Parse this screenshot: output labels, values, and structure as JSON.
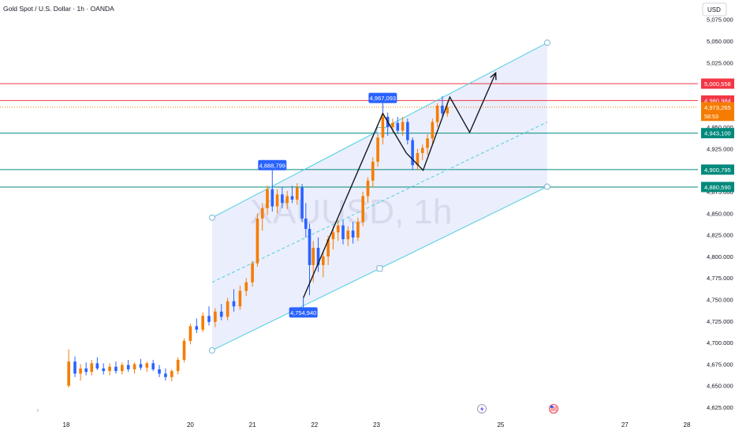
{
  "header": {
    "symbol_title": "Gold Spot / U.S. Dollar · 1h · OANDA",
    "currency": "USD",
    "watermark": "XAUUSD, 1h"
  },
  "colors": {
    "up": "#f57c00",
    "down": "#2962ff",
    "channel_line": "#4dd0e1",
    "channel_fill": "#e8ebfb",
    "red_line": "#f23645",
    "teal_line": "#00897b",
    "callout": "#2962ff",
    "axis_text": "#131722",
    "current_price_bg": "#f57c00",
    "level_badge_bg": "#00897b",
    "red_badge_bg": "#f23645"
  },
  "chart_data": {
    "type": "candlestick",
    "instrument": "XAUUSD",
    "timeframe": "1h",
    "ylim": [
      4625,
      5075
    ],
    "y_ticks": [
      "4,625.000",
      "4,650.000",
      "4,675.000",
      "4,700.000",
      "4,725.000",
      "4,750.000",
      "4,775.000",
      "4,800.000",
      "4,825.000",
      "4,850.000",
      "4,875.000",
      "4,900.000",
      "4,925.000",
      "4,950.000",
      "4,975.000",
      "5,000.000",
      "5,025.000",
      "5,050.000",
      "5,075.000"
    ],
    "x_ticks": [
      {
        "label": "18",
        "day": 18
      },
      {
        "label": "20",
        "day": 20
      },
      {
        "label": "21",
        "day": 21
      },
      {
        "label": "22",
        "day": 22
      },
      {
        "label": "23",
        "day": 23
      },
      {
        "label": "25",
        "day": 25
      },
      {
        "label": "27",
        "day": 27
      },
      {
        "label": "28",
        "day": 28
      }
    ],
    "x_day_range": [
      17.3,
      28.2
    ],
    "candles": [
      {
        "day": 18.04,
        "o": 4650,
        "h": 4692,
        "l": 4648,
        "c": 4678
      },
      {
        "day": 18.14,
        "o": 4678,
        "h": 4684,
        "l": 4660,
        "c": 4664
      },
      {
        "day": 18.23,
        "o": 4664,
        "h": 4675,
        "l": 4656,
        "c": 4670
      },
      {
        "day": 18.32,
        "o": 4670,
        "h": 4677,
        "l": 4662,
        "c": 4666
      },
      {
        "day": 18.41,
        "o": 4666,
        "h": 4680,
        "l": 4662,
        "c": 4676
      },
      {
        "day": 18.5,
        "o": 4676,
        "h": 4683,
        "l": 4668,
        "c": 4670
      },
      {
        "day": 18.6,
        "o": 4670,
        "h": 4676,
        "l": 4663,
        "c": 4667
      },
      {
        "day": 18.7,
        "o": 4667,
        "h": 4676,
        "l": 4662,
        "c": 4672
      },
      {
        "day": 18.8,
        "o": 4672,
        "h": 4678,
        "l": 4664,
        "c": 4667
      },
      {
        "day": 18.9,
        "o": 4667,
        "h": 4677,
        "l": 4663,
        "c": 4674
      },
      {
        "day": 19.0,
        "o": 4674,
        "h": 4680,
        "l": 4666,
        "c": 4669
      },
      {
        "day": 19.1,
        "o": 4669,
        "h": 4677,
        "l": 4664,
        "c": 4675
      },
      {
        "day": 19.2,
        "o": 4675,
        "h": 4681,
        "l": 4668,
        "c": 4671
      },
      {
        "day": 19.3,
        "o": 4671,
        "h": 4678,
        "l": 4666,
        "c": 4676
      },
      {
        "day": 19.4,
        "o": 4676,
        "h": 4680,
        "l": 4667,
        "c": 4669
      },
      {
        "day": 19.5,
        "o": 4669,
        "h": 4674,
        "l": 4660,
        "c": 4664
      },
      {
        "day": 19.6,
        "o": 4664,
        "h": 4670,
        "l": 4656,
        "c": 4660
      },
      {
        "day": 19.7,
        "o": 4660,
        "h": 4669,
        "l": 4655,
        "c": 4667
      },
      {
        "day": 19.8,
        "o": 4667,
        "h": 4683,
        "l": 4663,
        "c": 4680
      },
      {
        "day": 19.9,
        "o": 4680,
        "h": 4705,
        "l": 4677,
        "c": 4702
      },
      {
        "day": 20.0,
        "o": 4702,
        "h": 4722,
        "l": 4698,
        "c": 4719
      },
      {
        "day": 20.1,
        "o": 4719,
        "h": 4728,
        "l": 4711,
        "c": 4715
      },
      {
        "day": 20.2,
        "o": 4715,
        "h": 4735,
        "l": 4712,
        "c": 4731
      },
      {
        "day": 20.3,
        "o": 4731,
        "h": 4742,
        "l": 4720,
        "c": 4724
      },
      {
        "day": 20.4,
        "o": 4724,
        "h": 4740,
        "l": 4718,
        "c": 4736
      },
      {
        "day": 20.5,
        "o": 4736,
        "h": 4745,
        "l": 4726,
        "c": 4730
      },
      {
        "day": 20.6,
        "o": 4730,
        "h": 4752,
        "l": 4726,
        "c": 4748
      },
      {
        "day": 20.7,
        "o": 4748,
        "h": 4762,
        "l": 4736,
        "c": 4742
      },
      {
        "day": 20.8,
        "o": 4742,
        "h": 4766,
        "l": 4738,
        "c": 4760
      },
      {
        "day": 20.9,
        "o": 4760,
        "h": 4775,
        "l": 4754,
        "c": 4770
      },
      {
        "day": 21.0,
        "o": 4770,
        "h": 4795,
        "l": 4765,
        "c": 4792
      },
      {
        "day": 21.08,
        "o": 4792,
        "h": 4850,
        "l": 4788,
        "c": 4844
      },
      {
        "day": 21.16,
        "o": 4844,
        "h": 4862,
        "l": 4830,
        "c": 4856
      },
      {
        "day": 21.24,
        "o": 4856,
        "h": 4882,
        "l": 4848,
        "c": 4878
      },
      {
        "day": 21.32,
        "o": 4878,
        "h": 4889,
        "l": 4852,
        "c": 4858
      },
      {
        "day": 21.4,
        "o": 4858,
        "h": 4878,
        "l": 4850,
        "c": 4872
      },
      {
        "day": 21.48,
        "o": 4872,
        "h": 4880,
        "l": 4856,
        "c": 4862
      },
      {
        "day": 21.56,
        "o": 4862,
        "h": 4876,
        "l": 4855,
        "c": 4870
      },
      {
        "day": 21.64,
        "o": 4870,
        "h": 4882,
        "l": 4862,
        "c": 4866
      },
      {
        "day": 21.72,
        "o": 4866,
        "h": 4885,
        "l": 4860,
        "c": 4880
      },
      {
        "day": 21.8,
        "o": 4880,
        "h": 4884,
        "l": 4840,
        "c": 4844
      },
      {
        "day": 21.86,
        "o": 4844,
        "h": 4862,
        "l": 4822,
        "c": 4832
      },
      {
        "day": 21.92,
        "o": 4832,
        "h": 4838,
        "l": 4755,
        "c": 4790
      },
      {
        "day": 21.98,
        "o": 4790,
        "h": 4818,
        "l": 4770,
        "c": 4810
      },
      {
        "day": 22.06,
        "o": 4810,
        "h": 4822,
        "l": 4782,
        "c": 4790
      },
      {
        "day": 22.14,
        "o": 4790,
        "h": 4805,
        "l": 4776,
        "c": 4800
      },
      {
        "day": 22.22,
        "o": 4800,
        "h": 4824,
        "l": 4790,
        "c": 4820
      },
      {
        "day": 22.3,
        "o": 4820,
        "h": 4835,
        "l": 4808,
        "c": 4828
      },
      {
        "day": 22.38,
        "o": 4828,
        "h": 4842,
        "l": 4818,
        "c": 4836
      },
      {
        "day": 22.46,
        "o": 4836,
        "h": 4842,
        "l": 4814,
        "c": 4820
      },
      {
        "day": 22.54,
        "o": 4820,
        "h": 4835,
        "l": 4812,
        "c": 4830
      },
      {
        "day": 22.62,
        "o": 4830,
        "h": 4840,
        "l": 4815,
        "c": 4822
      },
      {
        "day": 22.7,
        "o": 4822,
        "h": 4845,
        "l": 4818,
        "c": 4840
      },
      {
        "day": 22.78,
        "o": 4840,
        "h": 4875,
        "l": 4835,
        "c": 4870
      },
      {
        "day": 22.86,
        "o": 4870,
        "h": 4892,
        "l": 4862,
        "c": 4888
      },
      {
        "day": 22.94,
        "o": 4888,
        "h": 4915,
        "l": 4880,
        "c": 4910
      },
      {
        "day": 23.02,
        "o": 4910,
        "h": 4942,
        "l": 4904,
        "c": 4938
      },
      {
        "day": 23.1,
        "o": 4938,
        "h": 4967,
        "l": 4930,
        "c": 4962
      },
      {
        "day": 23.18,
        "o": 4962,
        "h": 4967,
        "l": 4940,
        "c": 4950
      },
      {
        "day": 23.26,
        "o": 4950,
        "h": 4960,
        "l": 4944,
        "c": 4955
      },
      {
        "day": 23.34,
        "o": 4955,
        "h": 4962,
        "l": 4942,
        "c": 4946
      },
      {
        "day": 23.42,
        "o": 4946,
        "h": 4962,
        "l": 4940,
        "c": 4956
      },
      {
        "day": 23.5,
        "o": 4956,
        "h": 4960,
        "l": 4930,
        "c": 4935
      },
      {
        "day": 23.58,
        "o": 4935,
        "h": 4938,
        "l": 4900,
        "c": 4906
      },
      {
        "day": 23.66,
        "o": 4906,
        "h": 4925,
        "l": 4900,
        "c": 4920
      },
      {
        "day": 23.74,
        "o": 4920,
        "h": 4930,
        "l": 4912,
        "c": 4926
      },
      {
        "day": 23.82,
        "o": 4926,
        "h": 4942,
        "l": 4918,
        "c": 4937
      },
      {
        "day": 23.9,
        "o": 4937,
        "h": 4960,
        "l": 4930,
        "c": 4956
      },
      {
        "day": 23.98,
        "o": 4956,
        "h": 4978,
        "l": 4950,
        "c": 4975
      },
      {
        "day": 24.06,
        "o": 4975,
        "h": 4986,
        "l": 4962,
        "c": 4966
      },
      {
        "day": 24.14,
        "o": 4966,
        "h": 4978,
        "l": 4962,
        "c": 4973
      }
    ],
    "channel": {
      "upper": [
        {
          "day": 20.35,
          "price": 4845
        },
        {
          "day": 25.75,
          "price": 5048
        }
      ],
      "lower": [
        {
          "day": 20.35,
          "price": 4691
        },
        {
          "day": 25.75,
          "price": 4881
        }
      ],
      "midline": [
        {
          "day": 20.35,
          "price": 4770
        },
        {
          "day": 25.75,
          "price": 4956
        }
      ]
    },
    "zigzag": [
      {
        "day": 21.82,
        "price": 4752
      },
      {
        "day": 23.1,
        "price": 4966
      },
      {
        "day": 23.48,
        "price": 4920
      },
      {
        "day": 23.75,
        "price": 4900
      },
      {
        "day": 24.18,
        "price": 4985
      },
      {
        "day": 24.5,
        "price": 4944
      },
      {
        "day": 24.92,
        "price": 5013
      }
    ],
    "horizontal_levels": [
      {
        "label": "5,000,558",
        "price": 5000.558,
        "color": "red"
      },
      {
        "label": "4,980,984",
        "price": 4980.984,
        "color": "red"
      },
      {
        "label": "4,943,100",
        "price": 4943.1,
        "color": "teal"
      },
      {
        "label": "4,900,795",
        "price": 4900.795,
        "color": "teal"
      },
      {
        "label": "4,880,590",
        "price": 4880.59,
        "color": "teal"
      }
    ],
    "current_price": {
      "label": "4,973,265",
      "countdown": "58:53",
      "price": 4973.265
    },
    "callouts": [
      {
        "label": "4,888,799",
        "day": 21.32,
        "price": 4889
      },
      {
        "label": "4,967,093",
        "day": 23.1,
        "price": 4967
      },
      {
        "label": "4,754,940",
        "day": 21.82,
        "price": 4752
      }
    ]
  }
}
